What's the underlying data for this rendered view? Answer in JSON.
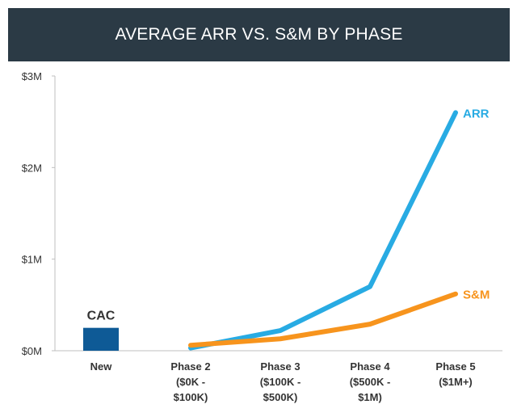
{
  "header": {
    "title": "AVERAGE ARR VS. S&M BY PHASE"
  },
  "colors": {
    "banner": "#2b3a45",
    "arr": "#28abe3",
    "sm": "#f7941d",
    "cac": "#0e5a96",
    "axis": "#bfbfbf"
  },
  "chart_data": {
    "type": "line",
    "title": "AVERAGE ARR VS. S&M BY PHASE",
    "categories": [
      [
        "New"
      ],
      [
        "Phase 2",
        "($0K -",
        "$100K)"
      ],
      [
        "Phase 3",
        "($100K -",
        "$500K)"
      ],
      [
        "Phase 4",
        "($500K -",
        "$1M)"
      ],
      [
        "Phase 5",
        "($1M+)"
      ]
    ],
    "yticks": [
      {
        "value": 0,
        "label": "$0M"
      },
      {
        "value": 1,
        "label": "$1M"
      },
      {
        "value": 2,
        "label": "$2M"
      },
      {
        "value": 3,
        "label": "$3M"
      }
    ],
    "ylim": [
      0,
      3
    ],
    "yunit": "$M",
    "series": [
      {
        "name": "ARR",
        "type": "line",
        "values": [
          null,
          0.03,
          0.22,
          0.7,
          2.6
        ]
      },
      {
        "name": "S&M",
        "type": "line",
        "values": [
          null,
          0.06,
          0.13,
          0.29,
          0.62
        ]
      }
    ],
    "bars": [
      {
        "name": "CAC",
        "category_index": 0,
        "value": 0.25
      }
    ],
    "grid": false,
    "legend": "inline-labels"
  }
}
